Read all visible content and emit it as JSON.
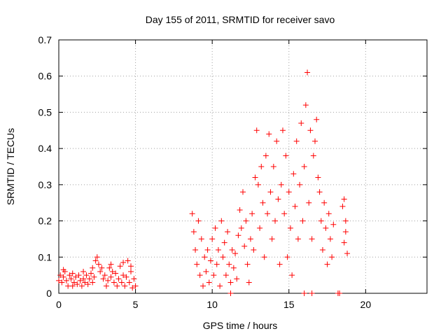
{
  "chart_data": {
    "type": "scatter",
    "title": "Day 155 of 2011, SRMTID for receiver savo",
    "xlabel": "GPS time / hours",
    "ylabel": "SRMTID / TECUs",
    "xlim": [
      0,
      24
    ],
    "ylim": [
      0,
      0.7
    ],
    "xticks": [
      0,
      5,
      10,
      15,
      20
    ],
    "xtick_labels": [
      "0",
      "5",
      "10",
      "15",
      "20"
    ],
    "yticks": [
      0,
      0.1,
      0.2,
      0.3,
      0.4,
      0.5,
      0.6,
      0.7
    ],
    "ytick_labels": [
      "0",
      "0.1",
      "0.2",
      "0.3",
      "0.4",
      "0.5",
      "0.6",
      "0.7"
    ],
    "grid": true,
    "series": [
      {
        "name": "SRMTID",
        "marker": "+",
        "color": "#ff0000",
        "points": [
          [
            0.0,
            0.035
          ],
          [
            0.1,
            0.05
          ],
          [
            0.2,
            0.03
          ],
          [
            0.3,
            0.045
          ],
          [
            0.4,
            0.06
          ],
          [
            0.5,
            0.035
          ],
          [
            0.6,
            0.02
          ],
          [
            0.7,
            0.05
          ],
          [
            0.8,
            0.04
          ],
          [
            0.9,
            0.055
          ],
          [
            1.0,
            0.03
          ],
          [
            1.1,
            0.045
          ],
          [
            1.2,
            0.025
          ],
          [
            1.3,
            0.05
          ],
          [
            1.4,
            0.035
          ],
          [
            1.5,
            0.02
          ],
          [
            1.6,
            0.04
          ],
          [
            1.7,
            0.03
          ],
          [
            1.8,
            0.05
          ],
          [
            1.9,
            0.025
          ],
          [
            2.0,
            0.04
          ],
          [
            2.1,
            0.055
          ],
          [
            2.2,
            0.03
          ],
          [
            2.3,
            0.045
          ],
          [
            2.4,
            0.09
          ],
          [
            2.5,
            0.1
          ],
          [
            2.6,
            0.08
          ],
          [
            2.7,
            0.06
          ],
          [
            2.8,
            0.07
          ],
          [
            2.9,
            0.04
          ],
          [
            3.0,
            0.05
          ],
          [
            3.1,
            0.02
          ],
          [
            3.2,
            0.035
          ],
          [
            3.3,
            0.07
          ],
          [
            3.4,
            0.045
          ],
          [
            3.5,
            0.06
          ],
          [
            3.6,
            0.03
          ],
          [
            3.7,
            0.055
          ],
          [
            3.8,
            0.02
          ],
          [
            3.9,
            0.04
          ],
          [
            4.0,
            0.075
          ],
          [
            4.1,
            0.03
          ],
          [
            4.2,
            0.05
          ],
          [
            4.3,
            0.02
          ],
          [
            4.4,
            0.045
          ],
          [
            4.5,
            0.09
          ],
          [
            4.6,
            0.03
          ],
          [
            4.7,
            0.06
          ],
          [
            4.8,
            0.015
          ],
          [
            4.9,
            0.04
          ],
          [
            5.0,
            0.02
          ],
          [
            0.3,
            0.065
          ],
          [
            0.9,
            0.02
          ],
          [
            1.6,
            0.06
          ],
          [
            2.2,
            0.07
          ],
          [
            3.4,
            0.08
          ],
          [
            4.2,
            0.085
          ],
          [
            4.7,
            0.075
          ],
          [
            8.7,
            0.22
          ],
          [
            8.8,
            0.17
          ],
          [
            8.9,
            0.12
          ],
          [
            9.0,
            0.08
          ],
          [
            9.1,
            0.2
          ],
          [
            9.2,
            0.05
          ],
          [
            9.3,
            0.15
          ],
          [
            9.4,
            0.02
          ],
          [
            9.5,
            0.1
          ],
          [
            9.6,
            0.06
          ],
          [
            9.7,
            0.12
          ],
          [
            9.8,
            0.03
          ],
          [
            9.9,
            0.09
          ],
          [
            10.0,
            0.15
          ],
          [
            10.1,
            0.05
          ],
          [
            10.2,
            0.18
          ],
          [
            10.3,
            0.08
          ],
          [
            10.4,
            0.12
          ],
          [
            10.5,
            0.02
          ],
          [
            10.6,
            0.2
          ],
          [
            10.7,
            0.1
          ],
          [
            10.8,
            0.14
          ],
          [
            10.9,
            0.05
          ],
          [
            11.0,
            0.17
          ],
          [
            11.1,
            0.08
          ],
          [
            11.2,
            0.03
          ],
          [
            11.3,
            0.12
          ],
          [
            11.4,
            0.07
          ],
          [
            11.5,
            0.11
          ],
          [
            11.6,
            0.04
          ],
          [
            11.7,
            0.16
          ],
          [
            11.8,
            0.23
          ],
          [
            11.9,
            0.18
          ],
          [
            12.0,
            0.28
          ],
          [
            12.1,
            0.13
          ],
          [
            12.2,
            0.2
          ],
          [
            12.3,
            0.08
          ],
          [
            12.4,
            0.03
          ],
          [
            12.5,
            0.15
          ],
          [
            12.6,
            0.22
          ],
          [
            12.7,
            0.12
          ],
          [
            12.8,
            0.32
          ],
          [
            12.9,
            0.45
          ],
          [
            13.0,
            0.3
          ],
          [
            13.1,
            0.18
          ],
          [
            13.2,
            0.35
          ],
          [
            13.3,
            0.25
          ],
          [
            13.4,
            0.1
          ],
          [
            13.5,
            0.38
          ],
          [
            13.6,
            0.22
          ],
          [
            13.7,
            0.44
          ],
          [
            13.8,
            0.28
          ],
          [
            13.9,
            0.15
          ],
          [
            14.0,
            0.35
          ],
          [
            14.1,
            0.2
          ],
          [
            14.2,
            0.42
          ],
          [
            14.3,
            0.26
          ],
          [
            14.4,
            0.08
          ],
          [
            14.5,
            0.3
          ],
          [
            14.6,
            0.45
          ],
          [
            14.7,
            0.22
          ],
          [
            14.8,
            0.38
          ],
          [
            14.9,
            0.1
          ],
          [
            15.0,
            0.28
          ],
          [
            15.1,
            0.18
          ],
          [
            15.2,
            0.05
          ],
          [
            15.3,
            0.33
          ],
          [
            15.4,
            0.24
          ],
          [
            15.5,
            0.42
          ],
          [
            15.6,
            0.15
          ],
          [
            15.7,
            0.3
          ],
          [
            15.8,
            0.47
          ],
          [
            15.9,
            0.2
          ],
          [
            16.0,
            0.35
          ],
          [
            16.1,
            0.52
          ],
          [
            16.2,
            0.61
          ],
          [
            16.3,
            0.25
          ],
          [
            16.4,
            0.45
          ],
          [
            16.5,
            0.15
          ],
          [
            16.6,
            0.38
          ],
          [
            16.7,
            0.42
          ],
          [
            16.8,
            0.48
          ],
          [
            16.9,
            0.32
          ],
          [
            17.0,
            0.28
          ],
          [
            17.1,
            0.2
          ],
          [
            17.2,
            0.12
          ],
          [
            17.3,
            0.25
          ],
          [
            17.4,
            0.18
          ],
          [
            17.5,
            0.08
          ],
          [
            17.6,
            0.22
          ],
          [
            17.7,
            0.15
          ],
          [
            17.8,
            0.1
          ],
          [
            17.9,
            0.19
          ],
          [
            18.5,
            0.24
          ],
          [
            18.6,
            0.14
          ],
          [
            18.7,
            0.2
          ],
          [
            18.8,
            0.11
          ],
          [
            18.6,
            0.26
          ],
          [
            18.7,
            0.17
          ],
          [
            11.2,
            0.0
          ],
          [
            16.0,
            0.0
          ],
          [
            16.5,
            0.0
          ],
          [
            18.2,
            0.0
          ],
          [
            18.3,
            0.0
          ]
        ]
      }
    ]
  }
}
